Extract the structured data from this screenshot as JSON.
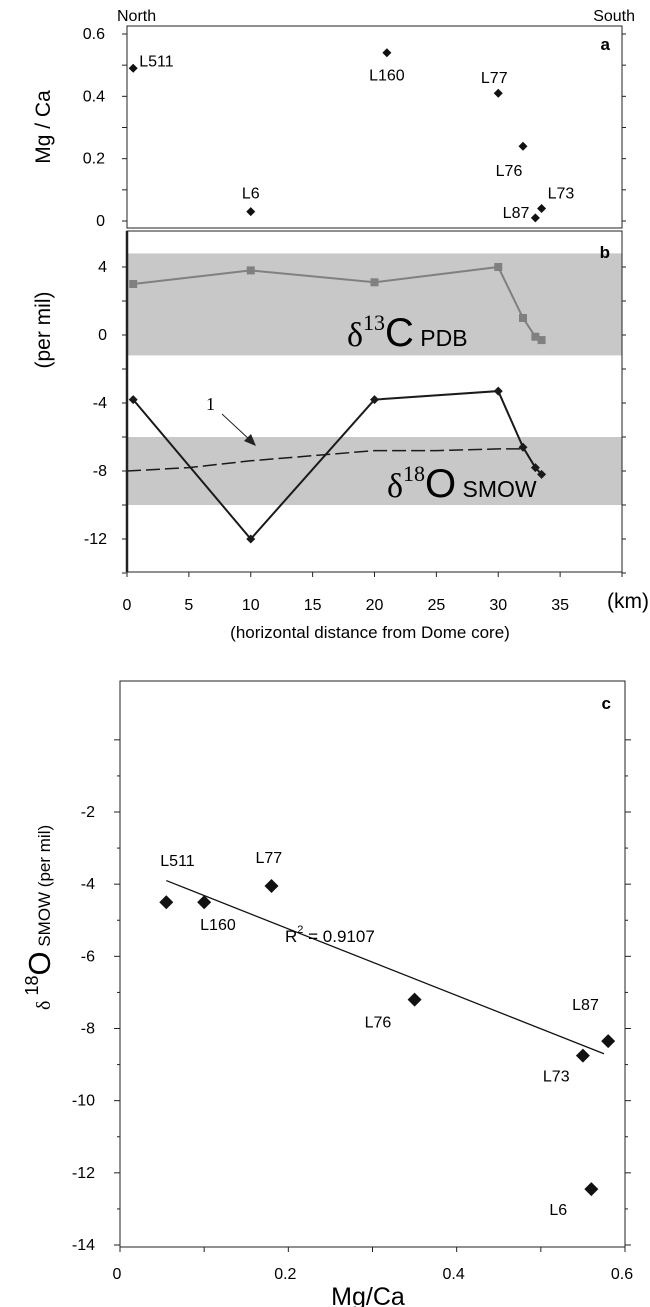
{
  "chart_data": [
    {
      "id": "a",
      "type": "scatter",
      "panel_label": "a",
      "corner_left": "North",
      "corner_right": "South",
      "ylabel": "Mg / Ca",
      "xlim": [
        0,
        40
      ],
      "ylim": [
        0,
        0.6
      ],
      "yticks": [
        "0",
        "0.2",
        "0.4",
        "0.6"
      ],
      "points": [
        {
          "label": "L511",
          "x": 0.5,
          "y": 0.49
        },
        {
          "label": "L6",
          "x": 10,
          "y": 0.03
        },
        {
          "label": "L160",
          "x": 21,
          "y": 0.54
        },
        {
          "label": "L77",
          "x": 30,
          "y": 0.41
        },
        {
          "label": "L76",
          "x": 32,
          "y": 0.24
        },
        {
          "label": "L87",
          "x": 33,
          "y": 0.01
        },
        {
          "label": "L73",
          "x": 33.5,
          "y": 0.04
        }
      ]
    },
    {
      "id": "b",
      "type": "line",
      "panel_label": "b",
      "ylabel": "(per mil)",
      "xlabel": "(horizontal distance from Dome core)",
      "xunit": "(km)",
      "xlim": [
        0,
        40
      ],
      "ylim": [
        -14,
        6
      ],
      "xticks": [
        "0",
        "5",
        "10",
        "15",
        "20",
        "25",
        "30",
        "35"
      ],
      "yticks": [
        "4",
        "0",
        "-4",
        "-8",
        "-12"
      ],
      "bands": [
        {
          "y_from": -1.2,
          "y_to": 4.8,
          "color": "#c8c8c8"
        },
        {
          "y_from": -10,
          "y_to": -6,
          "color": "#c8c8c8"
        }
      ],
      "series": [
        {
          "name": "δ13C PDB",
          "name_prefix": "δ",
          "name_superscript": "13",
          "name_main": "C",
          "name_sub": "PDB",
          "color": "#808080",
          "marker": "square",
          "x": [
            0.5,
            10,
            20,
            30,
            32,
            33,
            33.5
          ],
          "y": [
            3,
            3.8,
            3.1,
            4,
            1,
            -0.1,
            -0.3
          ]
        },
        {
          "name": "δ18O SMOW",
          "name_prefix": "δ",
          "name_superscript": "18",
          "name_main": "O",
          "name_sub": "SMOW",
          "color": "#1a1a1a",
          "marker": "diamond",
          "x": [
            0.5,
            10,
            20,
            30,
            32,
            33,
            33.5
          ],
          "y": [
            -3.8,
            -12,
            -3.8,
            -3.3,
            -6.6,
            -7.8,
            -8.2
          ]
        },
        {
          "name": "1",
          "color": "#1a1a1a",
          "style": "dashed",
          "x": [
            0,
            5,
            10,
            15,
            20,
            25,
            30,
            32
          ],
          "y": [
            -8,
            -7.8,
            -7.4,
            -7.1,
            -6.8,
            -6.8,
            -6.7,
            -6.7
          ]
        }
      ],
      "annotations": [
        {
          "text": "1"
        }
      ]
    },
    {
      "id": "c",
      "type": "scatter",
      "panel_label": "c",
      "xlabel": "Mg/Ca",
      "ylabel_prefix": "δ",
      "ylabel_superscript": "18",
      "ylabel_main": "O",
      "ylabel_rest": "SMOW (per mil)",
      "xlim": [
        0,
        0.6
      ],
      "ylim": [
        -14,
        0
      ],
      "xticks": [
        "0",
        "0.2",
        "0.4",
        "0.6"
      ],
      "yticks": [
        "-2",
        "-4",
        "-6",
        "-8",
        "-10",
        "-12",
        "-14"
      ],
      "points": [
        {
          "label": "L511",
          "x": 0.055,
          "y": -4.5
        },
        {
          "label": "L160",
          "x": 0.1,
          "y": -4.5
        },
        {
          "label": "L77",
          "x": 0.18,
          "y": -4.05
        },
        {
          "label": "L76",
          "x": 0.35,
          "y": -7.2
        },
        {
          "label": "L73",
          "x": 0.55,
          "y": -8.75
        },
        {
          "label": "L87",
          "x": 0.58,
          "y": -8.35
        },
        {
          "label": "L6",
          "x": 0.56,
          "y": -12.45
        }
      ],
      "trendline": {
        "x": [
          0.055,
          0.575
        ],
        "y": [
          -3.9,
          -8.7
        ]
      },
      "r2_label": "R",
      "r2_superscript": "2",
      "r2_value": " = 0.9107"
    }
  ]
}
